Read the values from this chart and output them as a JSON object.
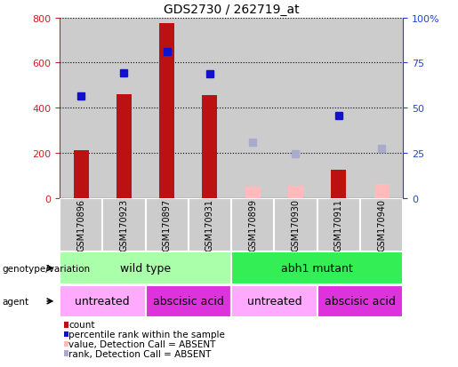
{
  "title": "GDS2730 / 262719_at",
  "samples": [
    "GSM170896",
    "GSM170923",
    "GSM170897",
    "GSM170931",
    "GSM170899",
    "GSM170930",
    "GSM170911",
    "GSM170940"
  ],
  "bar_values": [
    210,
    460,
    775,
    455,
    null,
    null,
    125,
    null
  ],
  "bar_absent_values": [
    null,
    null,
    null,
    null,
    50,
    55,
    null,
    60
  ],
  "rank_values": [
    450,
    555,
    650,
    550,
    null,
    null,
    365,
    null
  ],
  "rank_absent_values": [
    null,
    null,
    null,
    null,
    248,
    195,
    null,
    220
  ],
  "bar_color": "#bb1111",
  "bar_absent_color": "#ffbbbb",
  "rank_color": "#1111cc",
  "rank_absent_color": "#aaaacc",
  "ylim": [
    0,
    800
  ],
  "yticks": [
    0,
    200,
    400,
    600,
    800
  ],
  "y2ticks": [
    0,
    25,
    50,
    75,
    100
  ],
  "y2ticklabels": [
    "0",
    "25",
    "50",
    "75",
    "100%"
  ],
  "left_ycolor": "#cc2222",
  "right_ycolor": "#2244cc",
  "genotype_groups": [
    {
      "label": "wild type",
      "start": 0,
      "end": 4,
      "color": "#aaffaa"
    },
    {
      "label": "abh1 mutant",
      "start": 4,
      "end": 8,
      "color": "#33ee55"
    }
  ],
  "agent_groups": [
    {
      "label": "untreated",
      "start": 0,
      "end": 2,
      "color": "#ffaaff"
    },
    {
      "label": "abscisic acid",
      "start": 2,
      "end": 4,
      "color": "#dd33dd"
    },
    {
      "label": "untreated",
      "start": 4,
      "end": 6,
      "color": "#ffaaff"
    },
    {
      "label": "abscisic acid",
      "start": 6,
      "end": 8,
      "color": "#dd33dd"
    }
  ],
  "legend_items": [
    {
      "label": "count",
      "color": "#bb1111"
    },
    {
      "label": "percentile rank within the sample",
      "color": "#1111cc"
    },
    {
      "label": "value, Detection Call = ABSENT",
      "color": "#ffbbbb"
    },
    {
      "label": "rank, Detection Call = ABSENT",
      "color": "#aaaacc"
    }
  ],
  "bar_width": 0.35,
  "col_bg_color": "#cccccc",
  "col_bg_alpha": 1.0
}
